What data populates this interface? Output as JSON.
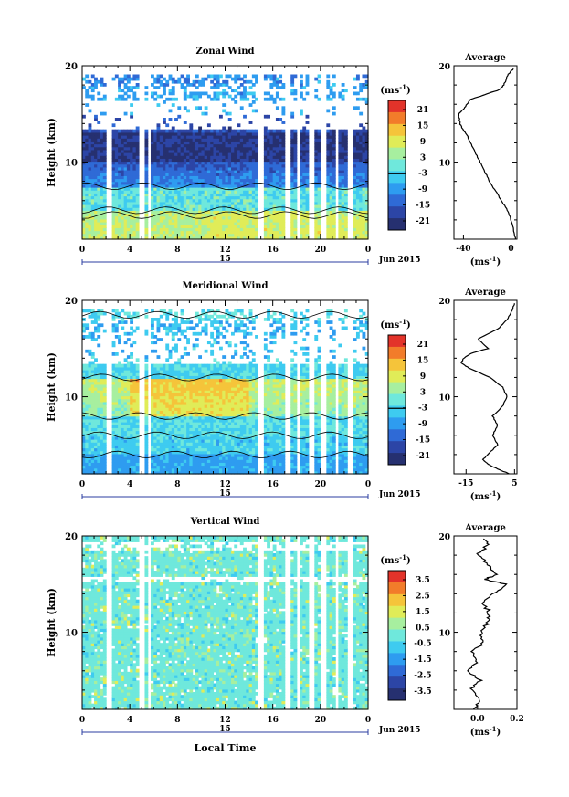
{
  "chart_data": [
    {
      "type": "heatmap",
      "title": "Zonal Wind",
      "ylabel": "Height (km)",
      "y_ticks": [
        "20",
        "10"
      ],
      "ylim": [
        2,
        20
      ],
      "x_ticks": [
        "0",
        "4",
        "8",
        "12",
        "16",
        "20",
        "0"
      ],
      "xlim": [
        0,
        24
      ],
      "day_label": "15",
      "month_label": "Jun 2015",
      "colorbar": {
        "unit_label": "(ms",
        "unit_exp": "-1",
        "unit_close": ")",
        "ticks": [
          "21",
          "15",
          "9",
          "3",
          "-3",
          "-9",
          "-15",
          "-21"
        ]
      },
      "zero_contour_heights_km": [
        4.5,
        5.0,
        7.5
      ],
      "average": {
        "title": "Average",
        "x_ticks": [
          "-40",
          "0"
        ],
        "xlim": [
          -48,
          5
        ],
        "xlabel": "(ms",
        "xlabel_exp": "-1",
        "xlabel_close": ")",
        "height_km": [
          2,
          3,
          4,
          5,
          6,
          7,
          8,
          9,
          10,
          11,
          12,
          13,
          13.5,
          14,
          15,
          15.5,
          16,
          16.5,
          17,
          17.5,
          18,
          19,
          19.7
        ],
        "value": [
          4,
          2,
          0,
          -3,
          -8,
          -13,
          -18,
          -22,
          -26,
          -30,
          -34,
          -38,
          -41,
          -43,
          -44,
          -40,
          -37,
          -34,
          -22,
          -10,
          -6,
          -3,
          2
        ]
      }
    },
    {
      "type": "heatmap",
      "title": "Meridional Wind",
      "ylabel": "Height (km)",
      "y_ticks": [
        "20",
        "10"
      ],
      "ylim": [
        2,
        20
      ],
      "x_ticks": [
        "0",
        "4",
        "8",
        "12",
        "16",
        "20",
        "0"
      ],
      "xlim": [
        0,
        24
      ],
      "day_label": "15",
      "month_label": "Jun 2015",
      "colorbar": {
        "unit_label": "(ms",
        "unit_exp": "-1",
        "unit_close": ")",
        "ticks": [
          "21",
          "15",
          "9",
          "3",
          "-3",
          "-9",
          "-15",
          "-21"
        ]
      },
      "zero_contour_heights_km": [
        4.0,
        6.0,
        8.0,
        12.0,
        18.5
      ],
      "average": {
        "title": "Average",
        "x_ticks": [
          "-15",
          "5"
        ],
        "xlim": [
          -20,
          6
        ],
        "xlabel": "(ms",
        "xlabel_exp": "-1",
        "xlabel_close": ")",
        "height_km": [
          2,
          2.5,
          3,
          3.5,
          4,
          5,
          6,
          7,
          8,
          9,
          10,
          11,
          12,
          13,
          13.5,
          14,
          14.5,
          15,
          16,
          17,
          18,
          19,
          19.7
        ],
        "value": [
          3,
          -2,
          -6,
          -8,
          -6,
          -2,
          -4,
          -2,
          -4,
          0,
          2,
          0,
          -5,
          -14,
          -17,
          -16,
          -13,
          -6,
          -10,
          -2,
          2,
          4,
          5
        ]
      }
    },
    {
      "type": "heatmap",
      "title": "Vertical Wind",
      "ylabel": "Height (km)",
      "xlabel": "Local Time",
      "y_ticks": [
        "20",
        "10"
      ],
      "ylim": [
        2,
        20
      ],
      "x_ticks": [
        "0",
        "4",
        "8",
        "12",
        "16",
        "20",
        "0"
      ],
      "xlim": [
        0,
        24
      ],
      "day_label": "15",
      "month_label": "Jun 2015",
      "colorbar": {
        "unit_label": "(ms",
        "unit_exp": "-1",
        "unit_close": ")",
        "ticks": [
          "3.5",
          "2.5",
          "1.5",
          "0.5",
          "-0.5",
          "-1.5",
          "-2.5",
          "-3.5"
        ]
      },
      "average": {
        "title": "Average",
        "x_ticks": [
          "0.0",
          "0.2"
        ],
        "xlim": [
          -0.12,
          0.2
        ],
        "xlabel": "(ms",
        "xlabel_exp": "-1",
        "xlabel_close": ")",
        "height_km": [
          2,
          3,
          4,
          5,
          6,
          7,
          8,
          9,
          10,
          11,
          12,
          13,
          14,
          15,
          15.5,
          16,
          17,
          18,
          19,
          19.7
        ],
        "value": [
          -0.02,
          0.02,
          -0.03,
          0.01,
          -0.04,
          0.0,
          -0.02,
          0.03,
          0.02,
          0.05,
          0.06,
          0.03,
          0.08,
          0.14,
          0.04,
          0.1,
          0.06,
          0.0,
          0.05,
          0.03
        ]
      }
    }
  ]
}
